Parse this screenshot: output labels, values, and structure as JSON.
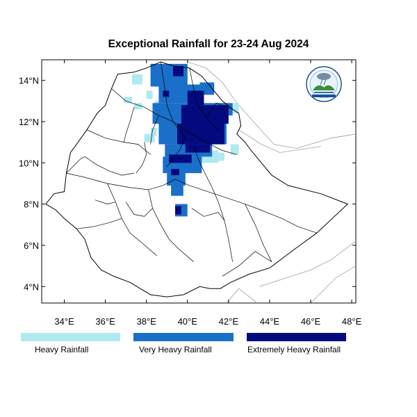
{
  "title": "Exceptional Rainfall for 23-24 Aug 2024",
  "map": {
    "extent": {
      "lon": [
        32.9,
        48.2
      ],
      "lat": [
        3.2,
        15.0
      ]
    },
    "x_ticks": [
      {
        "value": 34,
        "label": "34°E"
      },
      {
        "value": 36,
        "label": "36°E"
      },
      {
        "value": 38,
        "label": "38°E"
      },
      {
        "value": 40,
        "label": "40°E"
      },
      {
        "value": 42,
        "label": "42°E"
      },
      {
        "value": 44,
        "label": "44°E"
      },
      {
        "value": 46,
        "label": "46°E"
      },
      {
        "value": 48,
        "label": "48°E"
      }
    ],
    "y_ticks": [
      {
        "value": 4,
        "label": "4°N"
      },
      {
        "value": 6,
        "label": "6°N"
      },
      {
        "value": 8,
        "label": "8°N"
      },
      {
        "value": 10,
        "label": "10°N"
      },
      {
        "value": 12,
        "label": "12°N"
      },
      {
        "value": 14,
        "label": "14°N"
      }
    ],
    "colors": {
      "heavy": "#aeeaf0",
      "very_heavy": "#1a6fc9",
      "extremely_heavy": "#030a7e",
      "boundary": "#000000",
      "neighbor_boundary": "#a0a0a0"
    },
    "logo_icon": "ethiopian-meteorology-institute-logo"
  },
  "legend": [
    {
      "label": "Heavy Rainfall",
      "color": "#aeeaf0"
    },
    {
      "label": "Very Heavy Rainfall",
      "color": "#1a6fc9"
    },
    {
      "label": "Extremely Heavy Rainfall",
      "color": "#030a7e"
    }
  ]
}
